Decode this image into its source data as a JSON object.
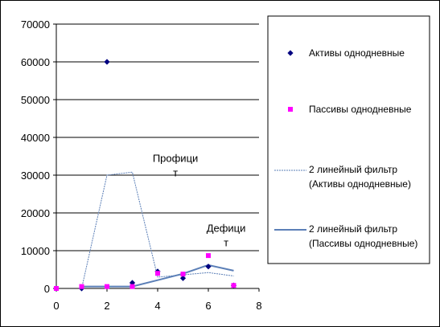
{
  "chart_data": {
    "type": "scatter",
    "title": "",
    "xlabel": "",
    "ylabel": "",
    "xlim": [
      0,
      8
    ],
    "ylim": [
      0,
      70000
    ],
    "x_ticks": [
      0,
      2,
      4,
      6,
      8
    ],
    "y_ticks": [
      0,
      10000,
      20000,
      30000,
      40000,
      50000,
      60000,
      70000
    ],
    "grid": "horizontal",
    "legend_position": "right",
    "series": [
      {
        "name": "Активы однодневные",
        "kind": "markers",
        "marker": "diamond",
        "color": "#000080",
        "x": [
          0,
          1,
          2,
          3,
          4,
          5,
          6,
          7
        ],
        "y": [
          0,
          0,
          60000,
          1500,
          4500,
          2700,
          5800,
          800
        ]
      },
      {
        "name": "Пассивы однодневные",
        "kind": "markers",
        "marker": "square",
        "color": "#ff00ff",
        "x": [
          0,
          1,
          2,
          3,
          4,
          5,
          6,
          7
        ],
        "y": [
          0,
          500,
          500,
          500,
          4000,
          3800,
          8700,
          800
        ]
      },
      {
        "name_lines": [
          "2 линейный фильтр",
          "(Активы однодневные)"
        ],
        "kind": "line",
        "color": "#5b7fb7",
        "stroke": 1,
        "dash": "2,1",
        "x": [
          1,
          2,
          3,
          4,
          5,
          6,
          7
        ],
        "y": [
          0,
          30000,
          30800,
          3000,
          3600,
          4200,
          3300
        ]
      },
      {
        "name_lines": [
          "2 линейный фильтр",
          "(Пассивы однодневные)"
        ],
        "kind": "line",
        "color": "#5b7fb7",
        "stroke": 2,
        "dash": "",
        "x": [
          1,
          2,
          3,
          4,
          5,
          6,
          7
        ],
        "y": [
          500,
          500,
          500,
          2200,
          3900,
          6200,
          4700
        ]
      }
    ],
    "annotations": [
      {
        "lines": [
          "Профици",
          "т"
        ],
        "x": 4.7,
        "y": 33500
      },
      {
        "lines": [
          "Дефици",
          "т"
        ],
        "x": 6.7,
        "y": 15000
      }
    ]
  }
}
